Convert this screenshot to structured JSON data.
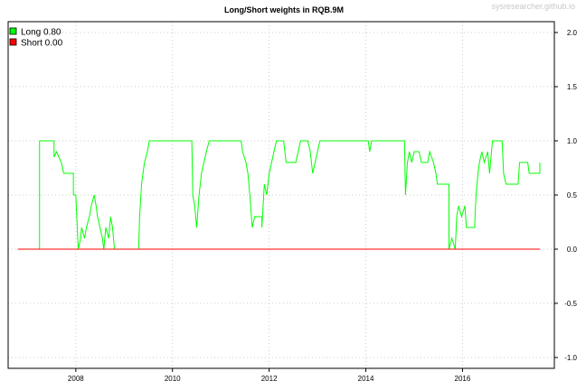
{
  "chart_data": {
    "type": "line",
    "title": "Long/Short weights in RQB.9M",
    "watermark": "sysresearcher.github.io",
    "xlim": [
      2006.6,
      2017.9
    ],
    "ylim": [
      -1.1,
      2.1
    ],
    "x_ticks": [
      2008,
      2010,
      2012,
      2014,
      2016
    ],
    "x_tick_labels": [
      "2008",
      "2010",
      "2012",
      "2014",
      "2016"
    ],
    "y_ticks": [
      -1.0,
      -0.5,
      0.0,
      0.5,
      1.0,
      1.5,
      2.0
    ],
    "y_tick_labels": [
      "-1.0",
      "-0.5",
      "0.0",
      "0.5",
      "1.0",
      "1.5",
      "2.0"
    ],
    "y_axis_side": "right",
    "grid": true,
    "legend_position": "top-left",
    "legend": [
      {
        "label": "Long 0.80",
        "color": "#00ff00"
      },
      {
        "label": "Short 0.00",
        "color": "#ff0000"
      }
    ],
    "series": [
      {
        "name": "Long",
        "color": "#00ff00",
        "points": [
          [
            2006.8,
            0
          ],
          [
            2007.25,
            0
          ],
          [
            2007.25,
            1.0
          ],
          [
            2007.55,
            1.0
          ],
          [
            2007.55,
            0.85
          ],
          [
            2007.6,
            0.9
          ],
          [
            2007.7,
            0.8
          ],
          [
            2007.75,
            0.7
          ],
          [
            2007.95,
            0.7
          ],
          [
            2007.95,
            0.5
          ],
          [
            2008.0,
            0.5
          ],
          [
            2008.02,
            0.3
          ],
          [
            2008.05,
            0.0
          ],
          [
            2008.1,
            0.1
          ],
          [
            2008.12,
            0.2
          ],
          [
            2008.18,
            0.1
          ],
          [
            2008.22,
            0.2
          ],
          [
            2008.28,
            0.3
          ],
          [
            2008.32,
            0.4
          ],
          [
            2008.38,
            0.5
          ],
          [
            2008.42,
            0.4
          ],
          [
            2008.45,
            0.3
          ],
          [
            2008.5,
            0.2
          ],
          [
            2008.55,
            0.1
          ],
          [
            2008.58,
            0.0
          ],
          [
            2008.62,
            0.2
          ],
          [
            2008.68,
            0.1
          ],
          [
            2008.72,
            0.3
          ],
          [
            2008.76,
            0.2
          ],
          [
            2008.8,
            0.0
          ],
          [
            2009.3,
            0.0
          ],
          [
            2009.32,
            0.3
          ],
          [
            2009.36,
            0.6
          ],
          [
            2009.42,
            0.8
          ],
          [
            2009.48,
            0.9
          ],
          [
            2009.52,
            1.0
          ],
          [
            2010.4,
            1.0
          ],
          [
            2010.42,
            0.5
          ],
          [
            2010.46,
            0.4
          ],
          [
            2010.5,
            0.2
          ],
          [
            2010.55,
            0.5
          ],
          [
            2010.6,
            0.7
          ],
          [
            2010.65,
            0.8
          ],
          [
            2010.7,
            0.9
          ],
          [
            2010.76,
            1.0
          ],
          [
            2011.42,
            1.0
          ],
          [
            2011.45,
            0.9
          ],
          [
            2011.52,
            0.8
          ],
          [
            2011.56,
            0.7
          ],
          [
            2011.6,
            0.5
          ],
          [
            2011.65,
            0.2
          ],
          [
            2011.7,
            0.3
          ],
          [
            2011.85,
            0.3
          ],
          [
            2011.85,
            0.2
          ],
          [
            2011.9,
            0.6
          ],
          [
            2011.95,
            0.5
          ],
          [
            2012.0,
            0.7
          ],
          [
            2012.05,
            0.8
          ],
          [
            2012.1,
            0.9
          ],
          [
            2012.15,
            1.0
          ],
          [
            2012.3,
            1.0
          ],
          [
            2012.35,
            0.8
          ],
          [
            2012.55,
            0.8
          ],
          [
            2012.6,
            0.9
          ],
          [
            2012.65,
            1.0
          ],
          [
            2012.8,
            1.0
          ],
          [
            2012.85,
            0.9
          ],
          [
            2012.9,
            0.7
          ],
          [
            2012.95,
            0.8
          ],
          [
            2013.0,
            0.9
          ],
          [
            2013.05,
            1.0
          ],
          [
            2014.05,
            1.0
          ],
          [
            2014.08,
            0.9
          ],
          [
            2014.12,
            1.0
          ],
          [
            2014.8,
            1.0
          ],
          [
            2014.82,
            0.5
          ],
          [
            2014.86,
            0.8
          ],
          [
            2014.9,
            0.9
          ],
          [
            2014.95,
            0.8
          ],
          [
            2015.0,
            0.9
          ],
          [
            2015.1,
            0.9
          ],
          [
            2015.15,
            0.8
          ],
          [
            2015.28,
            0.8
          ],
          [
            2015.32,
            0.9
          ],
          [
            2015.4,
            0.8
          ],
          [
            2015.45,
            0.7
          ],
          [
            2015.48,
            0.6
          ],
          [
            2015.72,
            0.6
          ],
          [
            2015.72,
            0.0
          ],
          [
            2015.78,
            0.1
          ],
          [
            2015.85,
            0.0
          ],
          [
            2015.88,
            0.3
          ],
          [
            2015.92,
            0.4
          ],
          [
            2015.98,
            0.3
          ],
          [
            2016.05,
            0.4
          ],
          [
            2016.08,
            0.2
          ],
          [
            2016.25,
            0.2
          ],
          [
            2016.28,
            0.5
          ],
          [
            2016.32,
            0.7
          ],
          [
            2016.35,
            0.8
          ],
          [
            2016.4,
            0.9
          ],
          [
            2016.45,
            0.8
          ],
          [
            2016.52,
            0.9
          ],
          [
            2016.56,
            0.7
          ],
          [
            2016.62,
            1.0
          ],
          [
            2016.82,
            1.0
          ],
          [
            2016.85,
            0.7
          ],
          [
            2016.9,
            0.6
          ],
          [
            2017.15,
            0.6
          ],
          [
            2017.18,
            0.8
          ],
          [
            2017.35,
            0.8
          ],
          [
            2017.38,
            0.7
          ],
          [
            2017.6,
            0.7
          ],
          [
            2017.6,
            0.8
          ]
        ]
      },
      {
        "name": "Short",
        "color": "#ff0000",
        "points": [
          [
            2006.8,
            0
          ],
          [
            2017.6,
            0
          ]
        ]
      }
    ]
  }
}
